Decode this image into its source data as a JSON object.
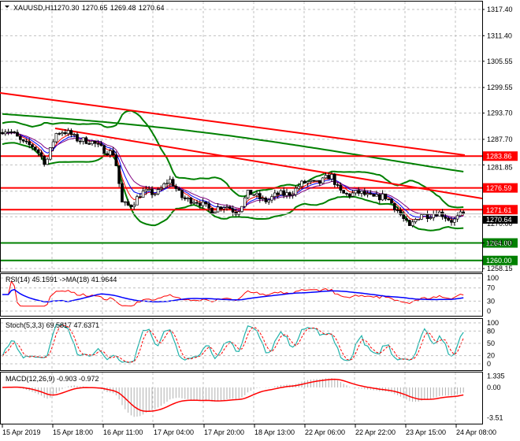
{
  "header": {
    "symbol": "XAUUSD,H1",
    "open": "1270.30",
    "high": "1270.65",
    "low": "1269.48",
    "close": "1270.64"
  },
  "price_axis": [
    "1317.40",
    "1311.40",
    "1305.55",
    "1299.55",
    "1293.70",
    "1287.70",
    "1281.85",
    "1270.00",
    "1264.00",
    "1258.15"
  ],
  "levels": [
    {
      "label": "1283.86",
      "value": 1283.86,
      "color": "#ff0000"
    },
    {
      "label": "1276.59",
      "value": 1276.59,
      "color": "#ff0000"
    },
    {
      "label": "1271.61",
      "value": 1271.61,
      "color": "#ff0000"
    },
    {
      "label": "1264.00",
      "value": 1264.0,
      "color": "#008000"
    },
    {
      "label": "1260.00",
      "value": 1260.0,
      "color": "#008000"
    }
  ],
  "current_price": "1270.64",
  "rsi": {
    "title": "RSI(14) 45.1591  ->MA(18) 41.9644",
    "axis": [
      "100",
      "70",
      "30",
      "0"
    ]
  },
  "stoch": {
    "title": "Stoch(5,3,3) 69.5817 47.6371",
    "axis": [
      "100",
      "80",
      "50",
      "20",
      "0"
    ]
  },
  "macd": {
    "title": "MACD(12,26,9) -0.903 -0.972",
    "axis": [
      "1.335",
      "0.00",
      "-3.51"
    ]
  },
  "time_axis": [
    "15 Apr 2019",
    "15 Apr 18:00",
    "16 Apr 11:00",
    "17 Apr 04:00",
    "17 Apr 20:00",
    "18 Apr 13:00",
    "22 Apr 06:00",
    "22 Apr 22:00",
    "23 Apr 15:00",
    "24 Apr 08:00"
  ],
  "chart_data": {
    "type": "candlestick",
    "title": "XAUUSD,H1",
    "ylim": [
      1258.15,
      1317.4
    ],
    "close_keypoints": [
      1290,
      1288.5,
      1286,
      1282.5,
      1289,
      1289,
      1287,
      1286,
      1284,
      1273,
      1273,
      1275,
      1276,
      1278,
      1275,
      1273,
      1272,
      1272,
      1271.5,
      1275,
      1274,
      1275,
      1277,
      1278,
      1279,
      1276,
      1275,
      1275,
      1274,
      1272,
      1267,
      1271,
      1270.5,
      1269.5,
      1270.64
    ]
  }
}
